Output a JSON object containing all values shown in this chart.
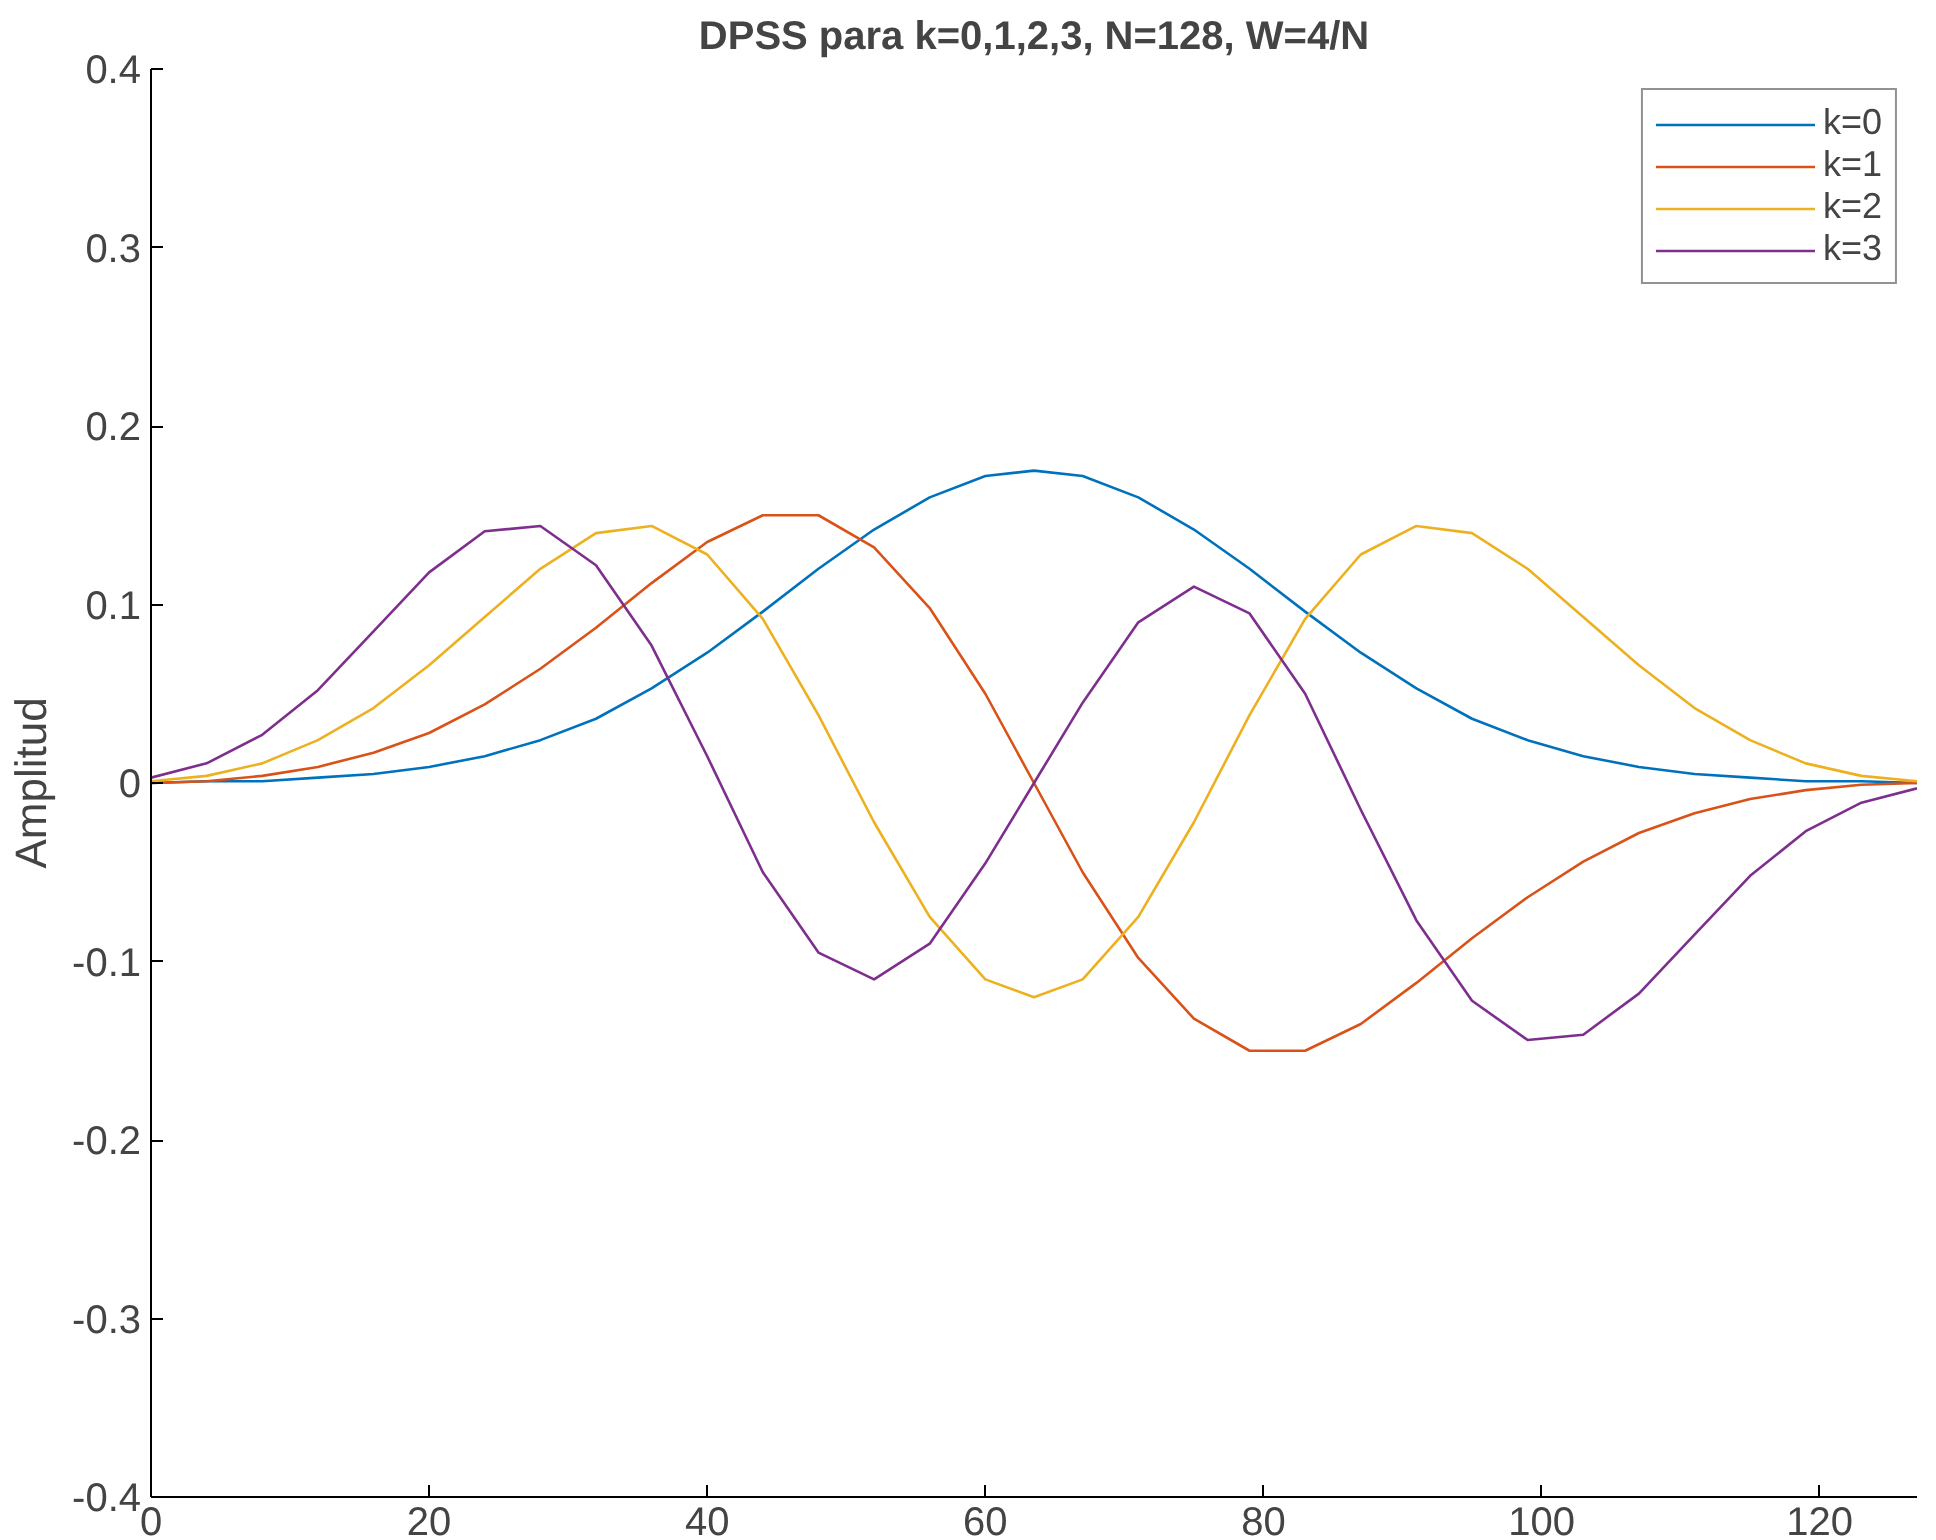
{
  "chart_data": {
    "type": "line",
    "title": "DPSS para k=0,1,2,3, N=128, W=4/N",
    "ylabel": "Amplitud",
    "x": [
      0,
      4,
      8,
      12,
      16,
      20,
      24,
      28,
      32,
      36,
      40,
      44,
      48,
      52,
      56,
      60,
      63.5,
      67,
      71,
      75,
      79,
      83,
      87,
      91,
      95,
      99,
      103,
      107,
      111,
      115,
      119,
      123,
      127
    ],
    "series": [
      {
        "name": "k=0",
        "color": "#0072bd",
        "values": [
          0,
          0.001,
          0.001,
          0.003,
          0.005,
          0.009,
          0.015,
          0.024,
          0.036,
          0.053,
          0.073,
          0.096,
          0.12,
          0.142,
          0.16,
          0.172,
          0.175,
          0.172,
          0.16,
          0.142,
          0.12,
          0.096,
          0.073,
          0.053,
          0.036,
          0.024,
          0.015,
          0.009,
          0.005,
          0.003,
          0.001,
          0.001,
          0
        ]
      },
      {
        "name": "k=1",
        "color": "#d95319",
        "values": [
          0,
          0.001,
          0.004,
          0.009,
          0.017,
          0.028,
          0.044,
          0.064,
          0.087,
          0.112,
          0.135,
          0.15,
          0.15,
          0.132,
          0.098,
          0.05,
          0,
          -0.05,
          -0.098,
          -0.132,
          -0.15,
          -0.15,
          -0.135,
          -0.112,
          -0.087,
          -0.064,
          -0.044,
          -0.028,
          -0.017,
          -0.009,
          -0.004,
          -0.001,
          0
        ]
      },
      {
        "name": "k=2",
        "color": "#edb120",
        "values": [
          0.001,
          0.004,
          0.011,
          0.024,
          0.042,
          0.066,
          0.093,
          0.12,
          0.14,
          0.144,
          0.128,
          0.092,
          0.038,
          -0.022,
          -0.075,
          -0.11,
          -0.12,
          -0.11,
          -0.075,
          -0.022,
          0.038,
          0.092,
          0.128,
          0.144,
          0.14,
          0.12,
          0.093,
          0.066,
          0.042,
          0.024,
          0.011,
          0.004,
          0.001
        ]
      },
      {
        "name": "k=3",
        "color": "#7e2f8e",
        "values": [
          0.003,
          0.011,
          0.027,
          0.052,
          0.085,
          0.118,
          0.141,
          0.144,
          0.122,
          0.077,
          0.015,
          -0.05,
          -0.095,
          -0.11,
          -0.09,
          -0.045,
          0,
          0.045,
          0.09,
          0.11,
          0.095,
          0.05,
          -0.015,
          -0.077,
          -0.122,
          -0.144,
          -0.141,
          -0.118,
          -0.085,
          -0.052,
          -0.027,
          -0.011,
          -0.003
        ]
      }
    ],
    "xlim": [
      0,
      127
    ],
    "xticks": [
      0,
      20,
      40,
      60,
      80,
      100,
      120
    ],
    "ylim": [
      -0.4,
      0.4
    ],
    "yticks": [
      -0.4,
      -0.3,
      -0.2,
      -0.1,
      0,
      0.1,
      0.2,
      0.3,
      0.4
    ],
    "grid": false,
    "legend": "top right"
  }
}
